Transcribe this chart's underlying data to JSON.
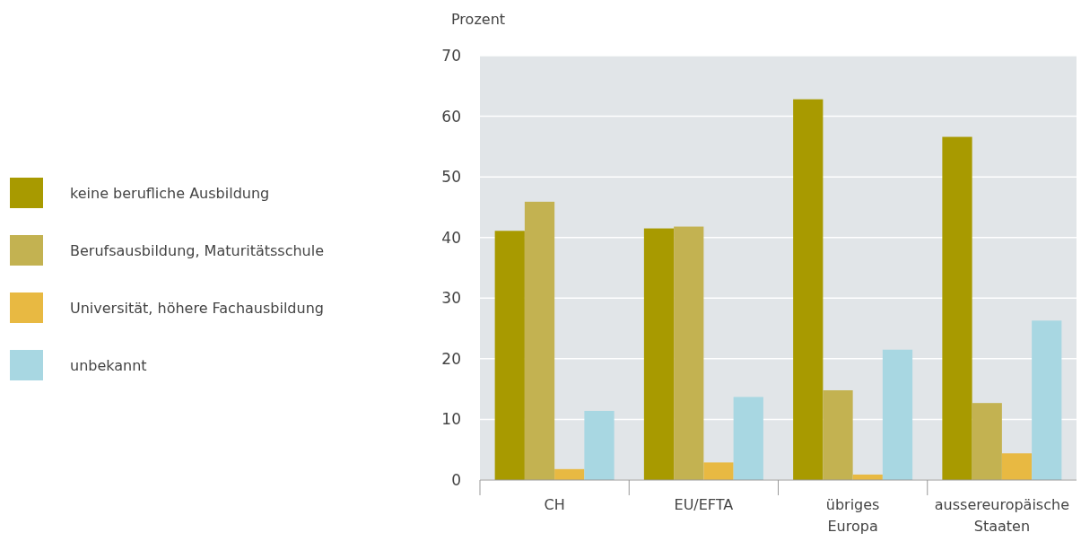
{
  "chart_data": {
    "type": "bar",
    "ylabel": "Prozent",
    "categories": [
      "CH",
      "EU/EFTA",
      "übriges Europa",
      "aussereuropäische Staaten"
    ],
    "series": [
      {
        "name": "keine berufliche Ausbildung",
        "color": "#a89a00",
        "values": [
          41.1,
          41.5,
          62.8,
          56.6
        ]
      },
      {
        "name": "Berufsausbildung, Maturitätsschule",
        "color": "#c3b251",
        "values": [
          45.9,
          41.8,
          14.8,
          12.7
        ]
      },
      {
        "name": "Universität, höhere Fachausbildung",
        "color": "#e8b942",
        "values": [
          1.8,
          2.9,
          0.9,
          4.4
        ]
      },
      {
        "name": "unbekannt",
        "color": "#a8d7e2",
        "values": [
          11.4,
          13.7,
          21.5,
          26.3
        ]
      }
    ],
    "ylim": [
      0,
      70
    ],
    "yticks": [
      0,
      10,
      20,
      30,
      40,
      50,
      60,
      70
    ],
    "grid": "y",
    "legend": "left"
  }
}
